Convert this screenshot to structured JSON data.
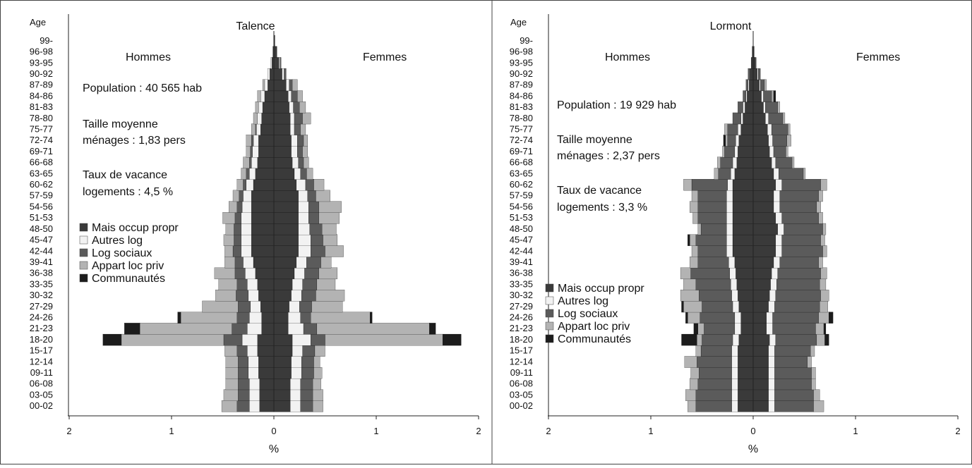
{
  "colors": {
    "mais_occup_propr": "#3a3a3a",
    "autres_log": "#f2f2f2",
    "log_sociaux": "#5b5b5b",
    "appart_loc_priv": "#b3b3b3",
    "communautes": "#1c1c1c",
    "axis": "#222222",
    "background": "#ffffff"
  },
  "chart_data": [
    {
      "type": "bar",
      "orientation": "horizontal-pyramid",
      "stacked": true,
      "title": "Talence",
      "ylabel": "Age",
      "xlabel": "%",
      "left_label": "Hommes",
      "right_label": "Femmes",
      "xlim": [
        -2,
        2
      ],
      "x_ticks": [
        "2",
        "1",
        "0",
        "1",
        "2"
      ],
      "legend_position": "left-middle",
      "annotations": [
        "Population : 40 565 hab",
        "Taille moyenne",
        "ménages : 1,83 pers",
        "Taux de vacance",
        "logements : 4,5 %"
      ],
      "series_names": [
        "Mais occup propr",
        "Autres log",
        "Log sociaux",
        "Appart loc priv",
        "Communautés"
      ],
      "categories": [
        "00-02",
        "03-05",
        "06-08",
        "09-11",
        "12-14",
        "15-17",
        "18-20",
        "21-23",
        "24-26",
        "27-29",
        "30-32",
        "33-35",
        "36-38",
        "39-41",
        "42-44",
        "45-47",
        "48-50",
        "51-53",
        "54-56",
        "57-59",
        "60-62",
        "63-65",
        "66-68",
        "69-71",
        "72-74",
        "75-77",
        "78-80",
        "81-83",
        "84-86",
        "87-89",
        "90-92",
        "93-95",
        "96-98",
        "99-"
      ],
      "hommes": {
        "Mais occup propr": [
          0.14,
          0.14,
          0.14,
          0.15,
          0.15,
          0.16,
          0.16,
          0.12,
          0.12,
          0.13,
          0.15,
          0.16,
          0.18,
          0.2,
          0.22,
          0.22,
          0.22,
          0.22,
          0.22,
          0.22,
          0.2,
          0.18,
          0.16,
          0.15,
          0.15,
          0.13,
          0.12,
          0.11,
          0.09,
          0.06,
          0.04,
          0.02,
          0.01,
          0.0
        ],
        "Autres log": [
          0.1,
          0.1,
          0.1,
          0.1,
          0.1,
          0.1,
          0.15,
          0.14,
          0.12,
          0.1,
          0.1,
          0.1,
          0.1,
          0.1,
          0.1,
          0.1,
          0.1,
          0.1,
          0.09,
          0.08,
          0.07,
          0.06,
          0.06,
          0.06,
          0.05,
          0.04,
          0.04,
          0.04,
          0.04,
          0.03,
          0.02,
          0.01,
          0.0,
          0.0
        ],
        "Log sociaux": [
          0.12,
          0.11,
          0.11,
          0.1,
          0.1,
          0.1,
          0.18,
          0.15,
          0.12,
          0.12,
          0.12,
          0.1,
          0.1,
          0.08,
          0.08,
          0.07,
          0.07,
          0.06,
          0.05,
          0.04,
          0.03,
          0.03,
          0.02,
          0.02,
          0.02,
          0.01,
          0.0,
          0.0,
          0.0,
          0.0,
          0.0,
          0.0,
          0.0,
          0.0
        ],
        "Appart loc priv": [
          0.15,
          0.14,
          0.12,
          0.12,
          0.12,
          0.12,
          1.0,
          0.9,
          0.55,
          0.35,
          0.2,
          0.18,
          0.2,
          0.1,
          0.08,
          0.1,
          0.08,
          0.12,
          0.08,
          0.06,
          0.06,
          0.05,
          0.06,
          0.04,
          0.05,
          0.04,
          0.04,
          0.03,
          0.03,
          0.02,
          0.0,
          0.0,
          0.0,
          0.0
        ],
        "Communautés": [
          0.0,
          0.0,
          0.0,
          0.0,
          0.0,
          0.0,
          0.18,
          0.15,
          0.03,
          0.0,
          0.0,
          0.0,
          0.0,
          0.0,
          0.0,
          0.0,
          0.0,
          0.0,
          0.0,
          0.0,
          0.0,
          0.0,
          0.0,
          0.0,
          0.0,
          0.0,
          0.0,
          0.0,
          0.0,
          0.0,
          0.0,
          0.0,
          0.0,
          0.0
        ]
      },
      "femmes": {
        "Mais occup propr": [
          0.16,
          0.16,
          0.16,
          0.17,
          0.17,
          0.18,
          0.18,
          0.14,
          0.14,
          0.15,
          0.17,
          0.18,
          0.2,
          0.22,
          0.24,
          0.24,
          0.24,
          0.24,
          0.24,
          0.24,
          0.22,
          0.2,
          0.18,
          0.17,
          0.17,
          0.16,
          0.16,
          0.15,
          0.14,
          0.12,
          0.08,
          0.05,
          0.03,
          0.01
        ],
        "Autres log": [
          0.1,
          0.1,
          0.1,
          0.1,
          0.1,
          0.1,
          0.18,
          0.15,
          0.12,
          0.1,
          0.1,
          0.1,
          0.1,
          0.1,
          0.12,
          0.12,
          0.11,
          0.1,
          0.1,
          0.09,
          0.09,
          0.06,
          0.06,
          0.06,
          0.06,
          0.04,
          0.04,
          0.04,
          0.03,
          0.03,
          0.02,
          0.01,
          0.0,
          0.0
        ],
        "Log sociaux": [
          0.12,
          0.12,
          0.12,
          0.12,
          0.12,
          0.12,
          0.14,
          0.13,
          0.1,
          0.12,
          0.14,
          0.14,
          0.14,
          0.14,
          0.14,
          0.12,
          0.12,
          0.1,
          0.1,
          0.08,
          0.08,
          0.06,
          0.05,
          0.05,
          0.06,
          0.06,
          0.08,
          0.06,
          0.06,
          0.03,
          0.02,
          0.01,
          0.0,
          0.0
        ],
        "Appart loc priv": [
          0.1,
          0.1,
          0.08,
          0.08,
          0.06,
          0.1,
          1.15,
          1.1,
          0.58,
          0.3,
          0.28,
          0.18,
          0.18,
          0.1,
          0.18,
          0.14,
          0.14,
          0.2,
          0.22,
          0.14,
          0.1,
          0.06,
          0.05,
          0.05,
          0.04,
          0.05,
          0.08,
          0.06,
          0.05,
          0.05,
          0.0,
          0.0,
          0.0,
          0.0
        ],
        "Communautés": [
          0.0,
          0.0,
          0.0,
          0.0,
          0.0,
          0.0,
          0.18,
          0.06,
          0.02,
          0.0,
          0.0,
          0.0,
          0.0,
          0.0,
          0.0,
          0.0,
          0.0,
          0.0,
          0.0,
          0.0,
          0.0,
          0.0,
          0.0,
          0.0,
          0.0,
          0.0,
          0.0,
          0.0,
          0.0,
          0.0,
          0.0,
          0.0,
          0.0,
          0.0
        ]
      }
    },
    {
      "type": "bar",
      "orientation": "horizontal-pyramid",
      "stacked": true,
      "title": "Lormont",
      "ylabel": "Age",
      "xlabel": "%",
      "left_label": "Hommes",
      "right_label": "Femmes",
      "xlim": [
        -2,
        2
      ],
      "x_ticks": [
        "2",
        "1",
        "0",
        "1",
        "2"
      ],
      "legend_position": "left-lower",
      "annotations": [
        "Population : 19 929 hab",
        "Taille moyenne",
        "ménages : 2,37 pers",
        "Taux de vacance",
        "logements : 3,3 %"
      ],
      "series_names": [
        "Mais occup propr",
        "Autres log",
        "Log sociaux",
        "Appart loc priv",
        "Communautés"
      ],
      "categories": [
        "00-02",
        "03-05",
        "06-08",
        "09-11",
        "12-14",
        "15-17",
        "18-20",
        "21-23",
        "24-26",
        "27-29",
        "30-32",
        "33-35",
        "36-38",
        "39-41",
        "42-44",
        "45-47",
        "48-50",
        "51-53",
        "54-56",
        "57-59",
        "60-62",
        "63-65",
        "66-68",
        "69-71",
        "72-74",
        "75-77",
        "78-80",
        "81-83",
        "84-86",
        "87-89",
        "90-92",
        "93-95",
        "96-98",
        "99-"
      ],
      "hommes": {
        "Mais occup propr": [
          0.15,
          0.15,
          0.15,
          0.15,
          0.15,
          0.15,
          0.14,
          0.12,
          0.12,
          0.14,
          0.15,
          0.16,
          0.17,
          0.18,
          0.2,
          0.2,
          0.2,
          0.2,
          0.2,
          0.2,
          0.2,
          0.18,
          0.16,
          0.15,
          0.14,
          0.12,
          0.1,
          0.08,
          0.06,
          0.04,
          0.03,
          0.02,
          0.01,
          0.0
        ],
        "Autres log": [
          0.06,
          0.06,
          0.06,
          0.06,
          0.06,
          0.06,
          0.06,
          0.06,
          0.06,
          0.06,
          0.06,
          0.06,
          0.06,
          0.06,
          0.06,
          0.06,
          0.06,
          0.06,
          0.06,
          0.06,
          0.05,
          0.04,
          0.04,
          0.03,
          0.03,
          0.03,
          0.02,
          0.02,
          0.01,
          0.01,
          0.0,
          0.0,
          0.0,
          0.0
        ],
        "Log sociaux": [
          0.35,
          0.35,
          0.33,
          0.32,
          0.34,
          0.3,
          0.3,
          0.3,
          0.34,
          0.3,
          0.32,
          0.34,
          0.38,
          0.3,
          0.28,
          0.3,
          0.25,
          0.28,
          0.28,
          0.28,
          0.35,
          0.12,
          0.12,
          0.1,
          0.08,
          0.1,
          0.08,
          0.05,
          0.03,
          0.02,
          0.02,
          0.0,
          0.0,
          0.0
        ],
        "Appart loc priv": [
          0.08,
          0.1,
          0.08,
          0.08,
          0.12,
          0.05,
          0.05,
          0.06,
          0.12,
          0.18,
          0.18,
          0.12,
          0.1,
          0.08,
          0.06,
          0.06,
          0.03,
          0.05,
          0.08,
          0.06,
          0.08,
          0.04,
          0.03,
          0.02,
          0.02,
          0.03,
          0.0,
          0.0,
          0.0,
          0.0,
          0.0,
          0.0,
          0.0,
          0.0
        ],
        "Communautés": [
          0.0,
          0.0,
          0.0,
          0.0,
          0.0,
          0.0,
          0.15,
          0.04,
          0.02,
          0.02,
          0.0,
          0.0,
          0.0,
          0.0,
          0.0,
          0.02,
          0.0,
          0.0,
          0.0,
          0.0,
          0.0,
          0.0,
          0.0,
          0.0,
          0.02,
          0.0,
          0.0,
          0.0,
          0.0,
          0.0,
          0.0,
          0.0,
          0.0,
          0.0
        ]
      },
      "femmes": {
        "Mais occup propr": [
          0.15,
          0.15,
          0.15,
          0.15,
          0.15,
          0.15,
          0.16,
          0.13,
          0.13,
          0.15,
          0.16,
          0.17,
          0.18,
          0.2,
          0.22,
          0.22,
          0.24,
          0.22,
          0.2,
          0.2,
          0.22,
          0.2,
          0.18,
          0.16,
          0.15,
          0.14,
          0.12,
          0.1,
          0.08,
          0.06,
          0.04,
          0.02,
          0.01,
          0.0
        ],
        "Autres log": [
          0.06,
          0.06,
          0.06,
          0.06,
          0.06,
          0.06,
          0.06,
          0.06,
          0.06,
          0.06,
          0.06,
          0.06,
          0.06,
          0.06,
          0.06,
          0.06,
          0.06,
          0.06,
          0.06,
          0.06,
          0.06,
          0.05,
          0.04,
          0.04,
          0.04,
          0.04,
          0.03,
          0.02,
          0.02,
          0.01,
          0.01,
          0.0,
          0.0,
          0.0
        ],
        "Log sociaux": [
          0.38,
          0.38,
          0.36,
          0.36,
          0.32,
          0.35,
          0.4,
          0.42,
          0.45,
          0.44,
          0.44,
          0.42,
          0.42,
          0.38,
          0.4,
          0.38,
          0.38,
          0.36,
          0.36,
          0.38,
          0.38,
          0.24,
          0.16,
          0.12,
          0.14,
          0.16,
          0.14,
          0.12,
          0.08,
          0.04,
          0.02,
          0.01,
          0.0,
          0.0
        ],
        "Appart loc priv": [
          0.1,
          0.06,
          0.04,
          0.04,
          0.04,
          0.04,
          0.08,
          0.08,
          0.1,
          0.08,
          0.08,
          0.06,
          0.06,
          0.04,
          0.04,
          0.04,
          0.03,
          0.04,
          0.04,
          0.04,
          0.06,
          0.02,
          0.02,
          0.02,
          0.04,
          0.02,
          0.02,
          0.02,
          0.02,
          0.02,
          0.0,
          0.0,
          0.0,
          0.0
        ],
        "Communautés": [
          0.0,
          0.0,
          0.0,
          0.0,
          0.0,
          0.0,
          0.04,
          0.02,
          0.04,
          0.0,
          0.0,
          0.0,
          0.0,
          0.0,
          0.0,
          0.0,
          0.0,
          0.0,
          0.0,
          0.0,
          0.0,
          0.0,
          0.0,
          0.0,
          0.0,
          0.0,
          0.0,
          0.0,
          0.02,
          0.0,
          0.0,
          0.0,
          0.0,
          0.0
        ]
      }
    }
  ]
}
